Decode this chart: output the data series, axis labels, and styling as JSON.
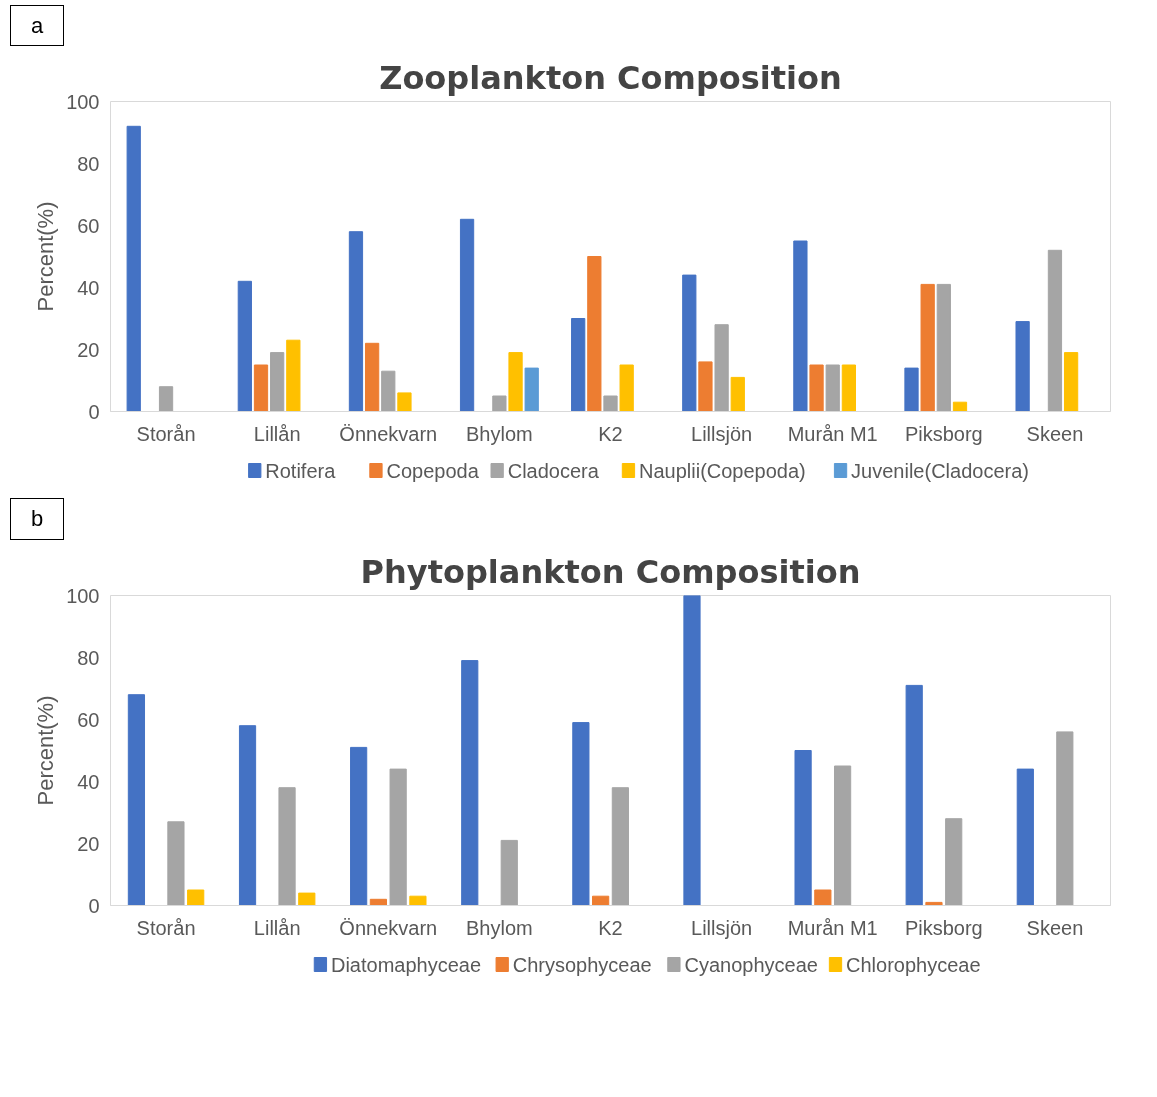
{
  "chart_data": [
    {
      "type": "bar",
      "title": "Zooplankton Composition",
      "ylabel": "Percent(%)",
      "annotations": [
        "a"
      ],
      "categories": [
        "Storån",
        "Lillån",
        "Önnekvarn",
        "Bhylom",
        "K2",
        "Lillsjön",
        "Murån M1",
        "Piksborg",
        "Skeen"
      ],
      "series": [
        {
          "name": "Rotifera",
          "color": "#4472c4",
          "values": [
            92,
            42,
            58,
            62,
            30,
            44,
            55,
            14,
            29
          ]
        },
        {
          "name": "Copepoda",
          "color": "#ed7d31",
          "values": [
            null,
            15,
            22,
            null,
            50,
            16,
            15,
            41,
            null
          ]
        },
        {
          "name": "Cladocera",
          "color": "#a5a5a5",
          "values": [
            8,
            19,
            13,
            5,
            5,
            28,
            15,
            41,
            52
          ]
        },
        {
          "name": "Nauplii(Copepoda)",
          "color": "#ffc000",
          "values": [
            null,
            23,
            6,
            19,
            15,
            11,
            15,
            3,
            19
          ]
        },
        {
          "name": "Juvenile(Cladocera)",
          "color": "#5b9bd5",
          "values": [
            null,
            null,
            null,
            14,
            null,
            null,
            null,
            null,
            null
          ]
        }
      ],
      "ylim": [
        0,
        100
      ],
      "yticks": [
        0,
        20,
        40,
        60,
        80,
        100
      ],
      "grid": false,
      "legend": "bottom"
    },
    {
      "type": "bar",
      "title": "Phytoplankton Composition",
      "ylabel": "Percent(%)",
      "annotations": [
        "b"
      ],
      "categories": [
        "Storån",
        "Lillån",
        "Önnekvarn",
        "Bhylom",
        "K2",
        "Lillsjön",
        "Murån M1",
        "Piksborg",
        "Skeen"
      ],
      "series": [
        {
          "name": "Diatomaphyceae",
          "color": "#4472c4",
          "values": [
            68,
            58,
            51,
            79,
            59,
            100,
            50,
            71,
            44
          ]
        },
        {
          "name": "Chrysophyceae",
          "color": "#ed7d31",
          "values": [
            null,
            null,
            2,
            null,
            3,
            null,
            5,
            1,
            null
          ]
        },
        {
          "name": "Cyanophyceae",
          "color": "#a5a5a5",
          "values": [
            27,
            38,
            44,
            21,
            38,
            null,
            45,
            28,
            56
          ]
        },
        {
          "name": "Chlorophyceae",
          "color": "#ffc000",
          "values": [
            5,
            4,
            3,
            null,
            null,
            null,
            null,
            null,
            null
          ]
        }
      ],
      "ylim": [
        0,
        100
      ],
      "yticks": [
        0,
        20,
        40,
        60,
        80,
        100
      ],
      "grid": false,
      "legend": "bottom"
    }
  ]
}
